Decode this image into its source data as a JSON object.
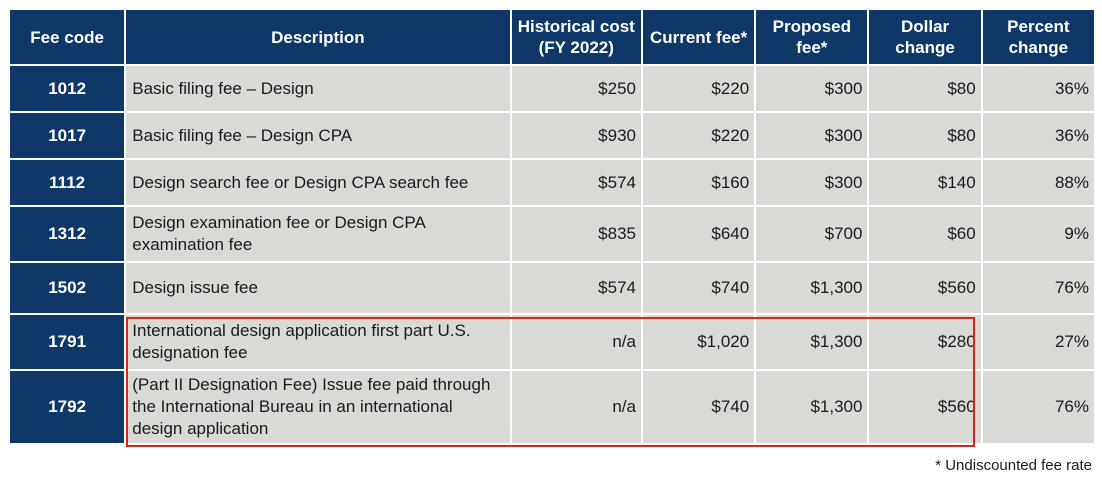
{
  "table": {
    "headers": {
      "fee_code": "Fee code",
      "description": "Description",
      "historical_cost": "Historical cost (FY 2022)",
      "current_fee": "Current fee*",
      "proposed_fee": "Proposed fee*",
      "dollar_change": "Dollar change",
      "percent_change": "Percent change"
    },
    "rows": [
      {
        "code": "1012",
        "description": "Basic filing fee – Design",
        "historical": "$250",
        "current": "$220",
        "proposed": "$300",
        "dollar": "$80",
        "percent": "36%"
      },
      {
        "code": "1017",
        "description": "Basic filing fee – Design CPA",
        "historical": "$930",
        "current": "$220",
        "proposed": "$300",
        "dollar": "$80",
        "percent": "36%"
      },
      {
        "code": "1112",
        "description": "Design search fee or Design CPA search fee",
        "historical": "$574",
        "current": "$160",
        "proposed": "$300",
        "dollar": "$140",
        "percent": "88%"
      },
      {
        "code": "1312",
        "description": "Design examination fee or Design CPA examination fee",
        "historical": "$835",
        "current": "$640",
        "proposed": "$700",
        "dollar": "$60",
        "percent": "9%"
      },
      {
        "code": "1502",
        "description": "Design issue fee",
        "historical": "$574",
        "current": "$740",
        "proposed": "$1,300",
        "dollar": "$560",
        "percent": "76%"
      },
      {
        "code": "1791",
        "description": "International design application first part U.S. designation fee",
        "historical": "n/a",
        "current": "$1,020",
        "proposed": "$1,300",
        "dollar": "$280",
        "percent": "27%"
      },
      {
        "code": "1792",
        "description": "(Part II Designation Fee) Issue fee paid through the International Bureau in an international design application",
        "historical": "n/a",
        "current": "$740",
        "proposed": "$1,300",
        "dollar": "$560",
        "percent": "76%"
      }
    ]
  },
  "footnote": "* Undiscounted fee rate",
  "colors": {
    "header_bg": "#0e3867",
    "cell_bg": "#d9d9d6",
    "highlight_border": "#d7261f"
  }
}
